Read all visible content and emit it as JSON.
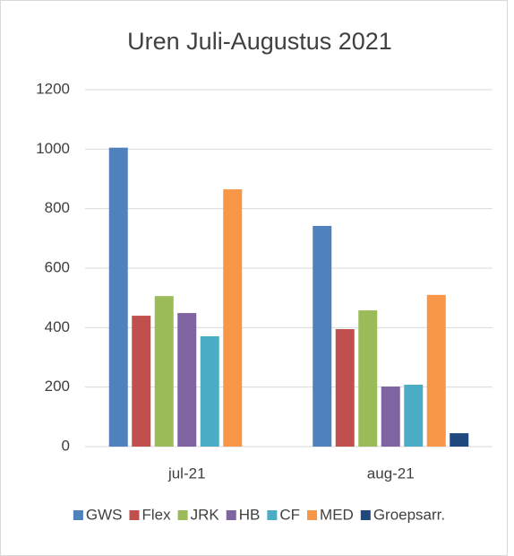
{
  "chart_data": {
    "type": "bar",
    "title": "Uren Juli-Augustus 2021",
    "categories": [
      "jul-21",
      "aug-21"
    ],
    "series": [
      {
        "name": "GWS",
        "color": "#4f81bd",
        "values": [
          1005,
          742
        ]
      },
      {
        "name": "Flex",
        "color": "#c0504d",
        "values": [
          440,
          395
        ]
      },
      {
        "name": "JRK",
        "color": "#9bbb59",
        "values": [
          506,
          458
        ]
      },
      {
        "name": "HB",
        "color": "#8064a2",
        "values": [
          449,
          202
        ]
      },
      {
        "name": "CF",
        "color": "#4bacc6",
        "values": [
          371,
          208
        ]
      },
      {
        "name": "MED",
        "color": "#f79646",
        "values": [
          865,
          510
        ]
      },
      {
        "name": "Groepsarr.",
        "color": "#1f497d",
        "values": [
          0,
          45
        ]
      }
    ],
    "ylim": [
      0,
      1200
    ],
    "yticks": [
      0,
      200,
      400,
      600,
      800,
      1000,
      1200
    ],
    "grid": true,
    "legend": "bottom"
  }
}
